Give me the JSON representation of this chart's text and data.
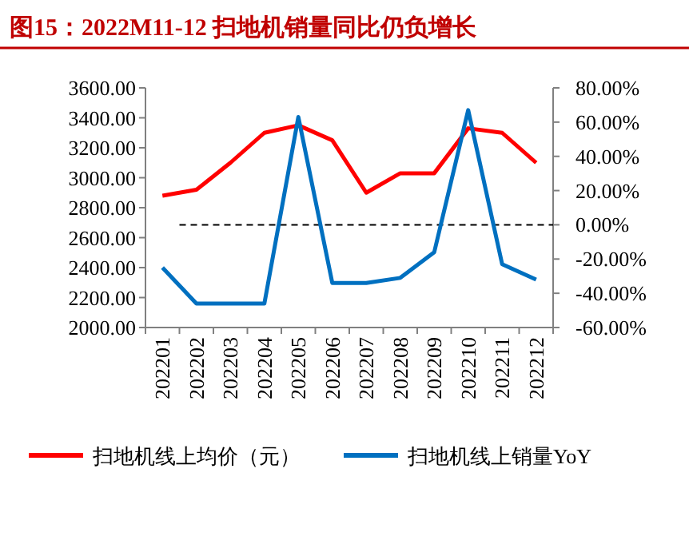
{
  "chart_data": {
    "type": "line",
    "title": "图15：2022M11-12 扫地机销量同比仍负增长",
    "categories": [
      "202201",
      "202202",
      "202203",
      "202204",
      "202205",
      "202206",
      "202207",
      "202208",
      "202209",
      "202210",
      "202211",
      "202212"
    ],
    "series": [
      {
        "name": "扫地机线上均价（元）",
        "color": "#ff0000",
        "values": [
          2880,
          2920,
          3100,
          3300,
          3350,
          3250,
          2900,
          3030,
          3030,
          3330,
          3300,
          3100
        ]
      },
      {
        "name": "扫地机线上销量YoY",
        "color": "#0070c0",
        "axis": "y2",
        "values": [
          -25,
          -46,
          -46,
          -46,
          63,
          -34,
          -34,
          -31,
          -16,
          67,
          -23,
          -32
        ]
      }
    ],
    "ylim": [
      2000,
      3600
    ],
    "yticks": [
      {
        "value": 2000,
        "label": "2000.00"
      },
      {
        "value": 2200,
        "label": "2200.00"
      },
      {
        "value": 2400,
        "label": "2400.00"
      },
      {
        "value": 2600,
        "label": "2600.00"
      },
      {
        "value": 2800,
        "label": "2800.00"
      },
      {
        "value": 3000,
        "label": "3000.00"
      },
      {
        "value": 3200,
        "label": "3200.00"
      },
      {
        "value": 3400,
        "label": "3400.00"
      },
      {
        "value": 3600,
        "label": "3600.00"
      }
    ],
    "y2lim": [
      -60,
      80
    ],
    "y2ticks": [
      {
        "value": -60,
        "label": "-60.00%"
      },
      {
        "value": -40,
        "label": "-40.00%"
      },
      {
        "value": -20,
        "label": "-20.00%"
      },
      {
        "value": 0,
        "label": "0.00%"
      },
      {
        "value": 20,
        "label": "20.00%"
      },
      {
        "value": 40,
        "label": "40.00%"
      },
      {
        "value": 60,
        "label": "60.00%"
      },
      {
        "value": 80,
        "label": "80.00%"
      }
    ],
    "ref_lines": [
      {
        "axis": "y2",
        "value": 0,
        "color": "#000000",
        "line_style": "dashed"
      }
    ],
    "legend": "bottom",
    "grid": false,
    "marker": "none",
    "line_style": "solid"
  }
}
